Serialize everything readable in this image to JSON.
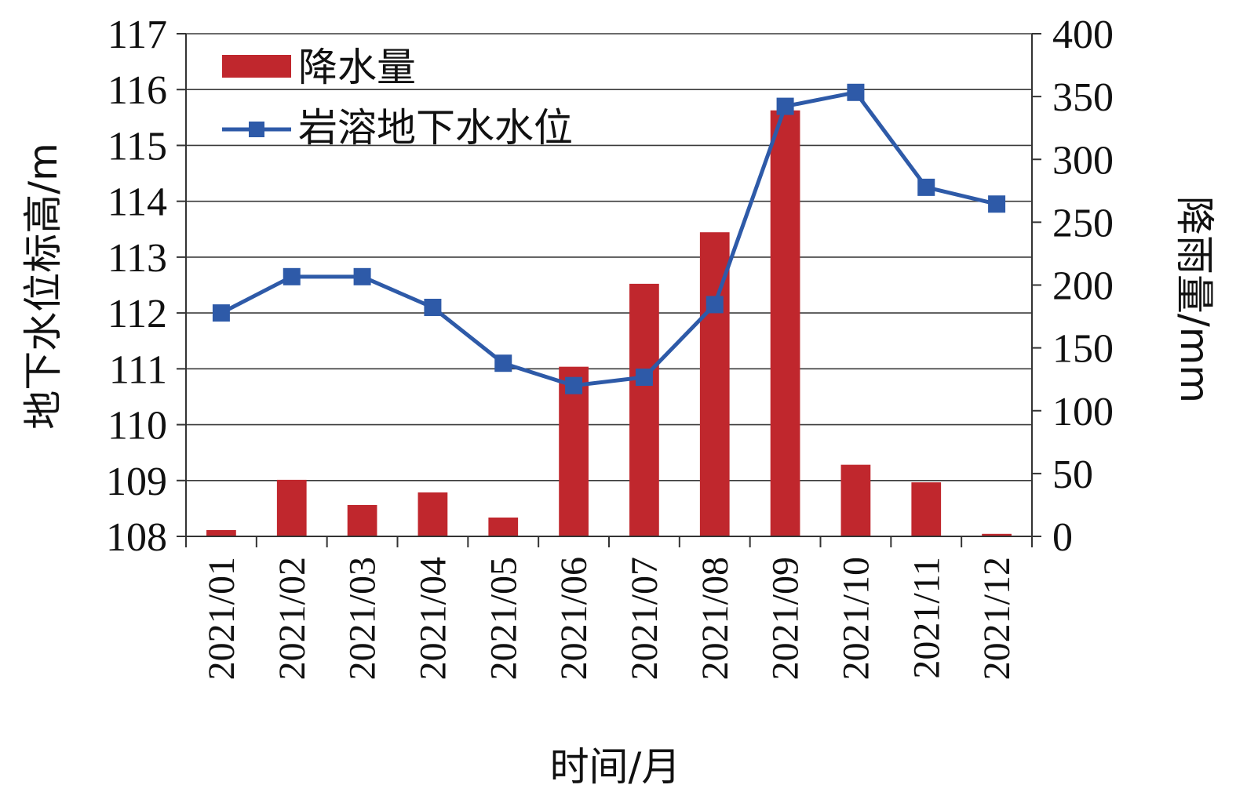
{
  "chart_data": {
    "type": "bar+line",
    "categories": [
      "2021/01",
      "2021/02",
      "2021/03",
      "2021/04",
      "2021/05",
      "2021/06",
      "2021/07",
      "2021/08",
      "2021/09",
      "2021/10",
      "2021/11",
      "2021/12"
    ],
    "series": [
      {
        "name": "降水量",
        "type": "bar",
        "axis": "right",
        "color": "#c0272d",
        "values": [
          5,
          45,
          25,
          35,
          15,
          135,
          201,
          242,
          339,
          57,
          43,
          2
        ]
      },
      {
        "name": "岩溶地下水水位",
        "type": "line",
        "axis": "left",
        "color": "#2e5aa8",
        "marker": "square",
        "values": [
          112.0,
          112.65,
          112.65,
          112.1,
          111.1,
          110.7,
          110.85,
          112.15,
          115.7,
          115.95,
          114.25,
          113.95
        ]
      }
    ],
    "xlabel": "时间/月",
    "ylabel_left": "地下水位标高/m",
    "ylabel_right": "降雨量/mm",
    "ylim_left": [
      108,
      117
    ],
    "ylim_right": [
      0,
      400
    ],
    "yticks_left": [
      "108",
      "109",
      "110",
      "111",
      "112",
      "113",
      "114",
      "115",
      "116",
      "117"
    ],
    "yticks_right": [
      "0",
      "50",
      "100",
      "150",
      "200",
      "250",
      "300",
      "350",
      "400"
    ],
    "grid": true,
    "legend_position": "top-left"
  }
}
